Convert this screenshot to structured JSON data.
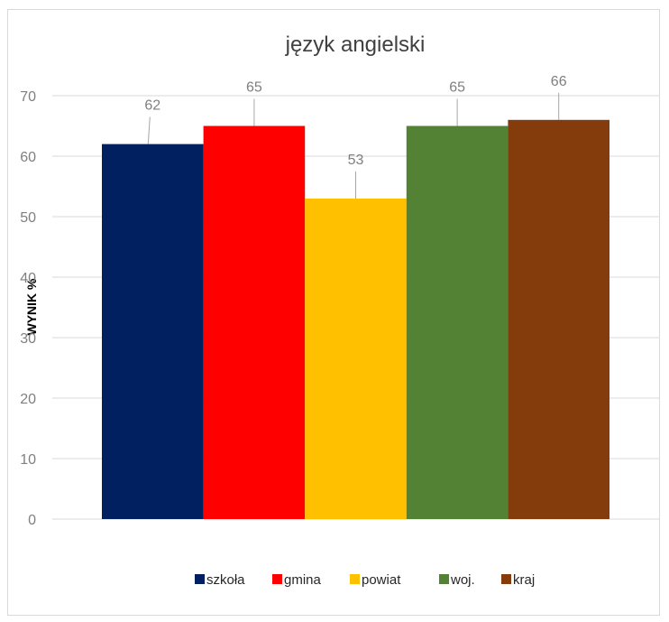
{
  "chart_data": {
    "type": "bar",
    "title": "język angielski",
    "xlabel": "",
    "ylabel": "WYNIK %",
    "ylim": [
      0,
      70
    ],
    "yticks": [
      0,
      10,
      20,
      30,
      40,
      50,
      60,
      70
    ],
    "grid": true,
    "legend_position": "bottom",
    "series": [
      {
        "name": "szkoła",
        "value": 62,
        "color": "#002060"
      },
      {
        "name": "gmina",
        "value": 65,
        "color": "#ff0000"
      },
      {
        "name": "powiat",
        "value": 53,
        "color": "#ffc000"
      },
      {
        "name": "woj.",
        "value": 65,
        "color": "#548235"
      },
      {
        "name": "kraj",
        "value": 66,
        "color": "#843c0c"
      }
    ]
  }
}
